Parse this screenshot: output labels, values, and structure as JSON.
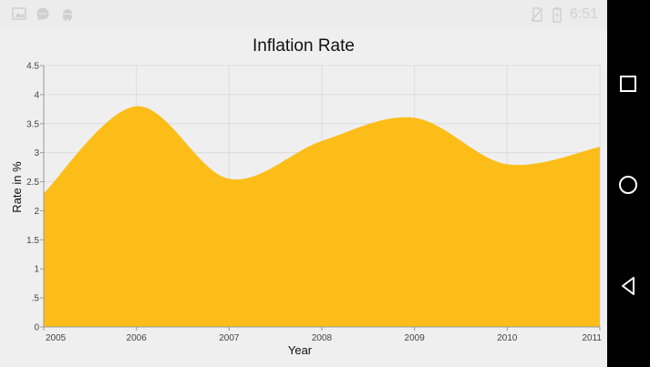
{
  "status_bar": {
    "time": "6:51",
    "left_icons": [
      "image-icon",
      "chat-bubble-icon",
      "android-icon"
    ],
    "right_icons": [
      "no-sim-icon",
      "battery-charging-icon"
    ]
  },
  "nav_bar": {
    "buttons": [
      "recents-square-icon",
      "home-circle-icon",
      "back-triangle-icon"
    ]
  },
  "colors": {
    "area_fill": "#fdbd19",
    "grid": "#dcdcdc",
    "background": "#efefef"
  },
  "chart_data": {
    "type": "area",
    "title": "Inflation Rate",
    "xlabel": "Year",
    "ylabel": "Rate in %",
    "x": [
      "2005",
      "2006",
      "2007",
      "2008",
      "2009",
      "2010",
      "2011"
    ],
    "values": [
      2.3,
      3.8,
      2.55,
      3.2,
      3.6,
      2.8,
      3.1
    ],
    "ylim": [
      0,
      4.5
    ],
    "y_ticks": [
      "0",
      ".5",
      "1",
      "1.5",
      "2",
      "2.5",
      "3",
      "3.5",
      "4",
      "4.5"
    ],
    "smooth": true,
    "grid": true,
    "legend": "none"
  }
}
